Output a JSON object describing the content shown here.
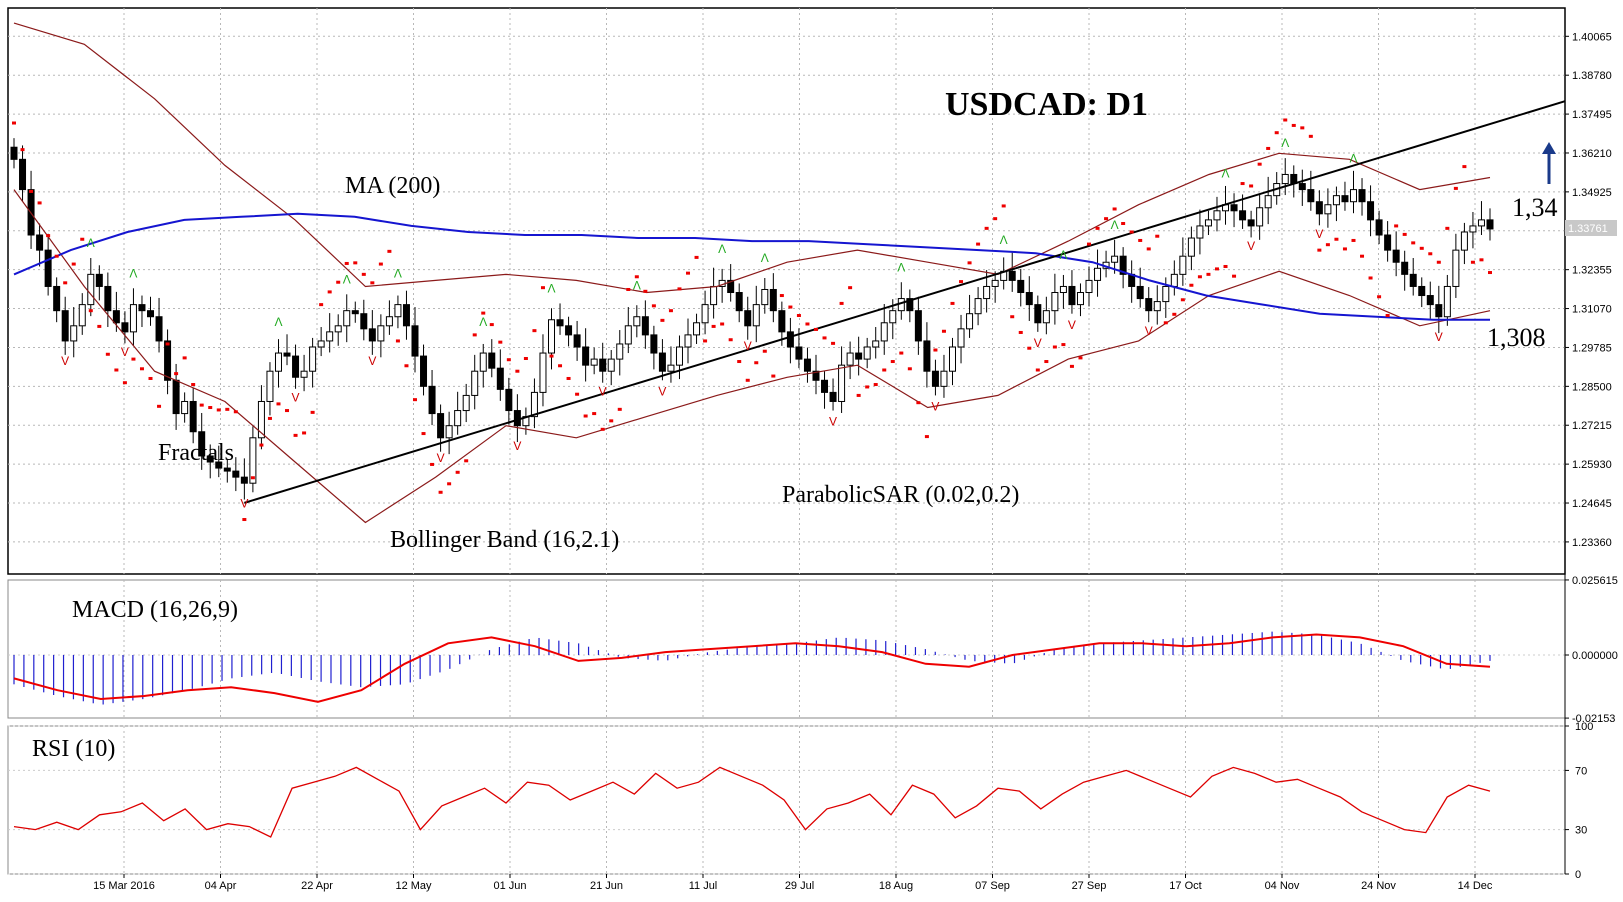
{
  "chart_data": {
    "type": "candlestick",
    "title": "USDCAD: D1",
    "symbol": "USDCAD",
    "timeframe": "D1",
    "current_price_label": "1.33761",
    "price_axis": {
      "ticks": [
        "1.40065",
        "1.38780",
        "1.37495",
        "1.36210",
        "1.34925",
        "1.33640",
        "1.32355",
        "1.31070",
        "1.29785",
        "1.28500",
        "1.27215",
        "1.25930",
        "1.24645",
        "1.23360"
      ],
      "ylim": [
        1.223,
        1.41
      ]
    },
    "x_axis": {
      "ticks": [
        "15 Mar 2016",
        "04 Apr",
        "22 Apr",
        "12 May",
        "01 Jun",
        "21 Jun",
        "11 Jul",
        "29 Jul",
        "18 Aug",
        "07 Sep",
        "27 Sep",
        "17 Oct",
        "04 Nov",
        "24 Nov",
        "14 Dec"
      ]
    },
    "annotations": {
      "ma": "MA (200)",
      "fractals": "Fractals",
      "bollinger": "Bollinger Band (16,2.1)",
      "sar": "ParabolicSAR (0.02,0.2)",
      "resistance_value": "1,34",
      "support_value": "1,308",
      "direction": "up-arrow-icon"
    },
    "close_series": [
      1.36,
      1.35,
      1.335,
      1.33,
      1.318,
      1.31,
      1.3,
      1.305,
      1.312,
      1.322,
      1.318,
      1.31,
      1.306,
      1.303,
      1.312,
      1.31,
      1.308,
      1.3,
      1.287,
      1.276,
      1.28,
      1.27,
      1.262,
      1.26,
      1.258,
      1.257,
      1.255,
      1.253,
      1.268,
      1.28,
      1.29,
      1.296,
      1.295,
      1.288,
      1.29,
      1.298,
      1.3,
      1.303,
      1.305,
      1.31,
      1.309,
      1.304,
      1.3,
      1.305,
      1.308,
      1.312,
      1.305,
      1.295,
      1.285,
      1.276,
      1.268,
      1.272,
      1.277,
      1.282,
      1.29,
      1.296,
      1.291,
      1.284,
      1.277,
      1.272,
      1.275,
      1.283,
      1.296,
      1.307,
      1.305,
      1.302,
      1.298,
      1.292,
      1.294,
      1.29,
      1.294,
      1.299,
      1.305,
      1.308,
      1.302,
      1.296,
      1.29,
      1.292,
      1.298,
      1.302,
      1.306,
      1.312,
      1.318,
      1.32,
      1.316,
      1.31,
      1.305,
      1.312,
      1.317,
      1.31,
      1.303,
      1.298,
      1.294,
      1.29,
      1.287,
      1.283,
      1.28,
      1.292,
      1.296,
      1.294,
      1.298,
      1.3,
      1.306,
      1.31,
      1.314,
      1.31,
      1.3,
      1.29,
      1.285,
      1.29,
      1.298,
      1.304,
      1.309,
      1.314,
      1.318,
      1.32,
      1.323,
      1.32,
      1.316,
      1.312,
      1.306,
      1.31,
      1.316,
      1.318,
      1.312,
      1.316,
      1.32,
      1.324,
      1.326,
      1.328,
      1.322,
      1.318,
      1.314,
      1.31,
      1.313,
      1.318,
      1.322,
      1.328,
      1.334,
      1.338,
      1.34,
      1.343,
      1.345,
      1.343,
      1.34,
      1.338,
      1.344,
      1.348,
      1.352,
      1.355,
      1.352,
      1.35,
      1.346,
      1.342,
      1.345,
      1.348,
      1.346,
      1.35,
      1.346,
      1.34,
      1.335,
      1.33,
      1.326,
      1.322,
      1.318,
      1.315,
      1.312,
      1.308,
      1.318,
      1.33,
      1.336,
      1.338,
      1.34,
      1.337
    ],
    "ma200": [
      1.322,
      1.33,
      1.336,
      1.34,
      1.341,
      1.342,
      1.341,
      1.338,
      1.336,
      1.335,
      1.335,
      1.334,
      1.334,
      1.333,
      1.333,
      1.332,
      1.331,
      1.33,
      1.329,
      1.326,
      1.32,
      1.315,
      1.312,
      1.309,
      1.308,
      1.307,
      1.307
    ],
    "bb_upper": [
      1.405,
      1.398,
      1.38,
      1.358,
      1.34,
      1.318,
      1.32,
      1.322,
      1.32,
      1.316,
      1.318,
      1.326,
      1.33,
      1.326,
      1.322,
      1.333,
      1.345,
      1.355,
      1.362,
      1.36,
      1.35,
      1.354
    ],
    "bb_lower": [
      1.35,
      1.318,
      1.29,
      1.28,
      1.26,
      1.24,
      1.255,
      1.272,
      1.268,
      1.275,
      1.282,
      1.288,
      1.292,
      1.278,
      1.282,
      1.294,
      1.3,
      1.315,
      1.323,
      1.315,
      1.305,
      1.31
    ],
    "macd": {
      "label": "MACD (16,26,9)",
      "ticks": [
        "0.025615",
        "0.000000",
        "-0.02153"
      ],
      "ylim": [
        -0.0215,
        0.0256
      ],
      "hist": [
        -0.01,
        -0.014,
        -0.017,
        -0.015,
        -0.012,
        -0.008,
        -0.006,
        -0.009,
        -0.011,
        -0.01,
        -0.005,
        0.002,
        0.006,
        0.004,
        -0.001,
        -0.002,
        0.001,
        0.003,
        0.004,
        0.006,
        0.005,
        0.002,
        -0.002,
        -0.003,
        0.002,
        0.004,
        0.005,
        0.006,
        0.007,
        0.008,
        0.007,
        0.004,
        -0.002,
        -0.005,
        -0.002
      ],
      "signal": [
        -0.008,
        -0.012,
        -0.015,
        -0.014,
        -0.012,
        -0.011,
        -0.013,
        -0.016,
        -0.012,
        -0.003,
        0.004,
        0.006,
        0.003,
        -0.002,
        -0.001,
        0.001,
        0.002,
        0.003,
        0.004,
        0.003,
        0.001,
        -0.003,
        -0.004,
        0.0,
        0.002,
        0.004,
        0.004,
        0.003,
        0.004,
        0.006,
        0.007,
        0.006,
        0.003,
        -0.003,
        -0.004
      ]
    },
    "rsi": {
      "label": "RSI (10)",
      "ticks": [
        "100",
        "70",
        "30",
        "0"
      ],
      "ylim": [
        0,
        100
      ],
      "values": [
        32,
        30,
        35,
        30,
        40,
        42,
        48,
        36,
        44,
        30,
        34,
        32,
        25,
        58,
        62,
        66,
        72,
        64,
        56,
        30,
        46,
        52,
        58,
        48,
        62,
        60,
        50,
        56,
        62,
        54,
        68,
        58,
        62,
        72,
        66,
        60,
        50,
        30,
        44,
        48,
        54,
        40,
        60,
        54,
        38,
        46,
        58,
        56,
        44,
        54,
        62,
        66,
        70,
        64,
        58,
        52,
        66,
        72,
        68,
        62,
        64,
        58,
        52,
        42,
        36,
        30,
        28,
        52,
        60,
        56
      ]
    },
    "colors": {
      "up_candle": "#ffffff",
      "down_candle": "#000000",
      "ma": "#1515d0",
      "bollinger": "#8b1a1a",
      "sar": "#ee0000",
      "fractal_up": "#22aa22",
      "fractal_down": "#cc0000",
      "macd_hist": "#2020d0",
      "macd_signal": "#ee0000",
      "rsi": "#dd0000",
      "trendline": "#000000",
      "arrow": "#1a3a8a"
    }
  }
}
